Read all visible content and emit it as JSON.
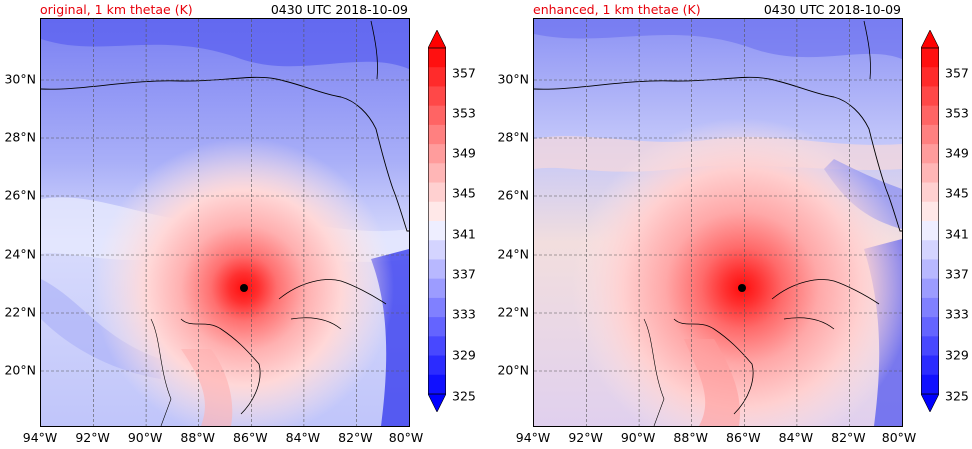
{
  "panels": [
    {
      "title_left": "original, 1 km thetae (K)",
      "title_right": "0430 UTC 2018-10-09",
      "storm_center": {
        "lon": -86.3,
        "lat": 22.9
      }
    },
    {
      "title_left": "enhanced, 1 km thetae (K)",
      "title_right": "0430 UTC 2018-10-09",
      "storm_center": {
        "lon": -86.0,
        "lat": 22.9
      }
    }
  ],
  "lon_ticks": [
    "94°W",
    "92°W",
    "90°W",
    "88°W",
    "86°W",
    "84°W",
    "82°W",
    "80°W"
  ],
  "lat_ticks": [
    "30°N",
    "28°N",
    "26°N",
    "24°N",
    "22°N",
    "20°N"
  ],
  "colorbar_ticks": [
    "357",
    "353",
    "349",
    "345",
    "341",
    "337",
    "333",
    "329",
    "325"
  ],
  "colorbar": {
    "min": 325,
    "max": 359,
    "interval": 2,
    "colors": [
      "#1010ff",
      "#2b2bff",
      "#4848ff",
      "#6464ff",
      "#8080ff",
      "#9c9cff",
      "#b8b8ff",
      "#d4d4ff",
      "#eeeeff",
      "#ffe8e8",
      "#ffd0d0",
      "#ffb6b6",
      "#ff9c9c",
      "#ff8080",
      "#ff6464",
      "#ff4848",
      "#ff2b2b",
      "#ff1010"
    ]
  },
  "map_extent": {
    "lon_min": -94,
    "lon_max": -80,
    "lat_min": 18,
    "lat_max": 32
  }
}
